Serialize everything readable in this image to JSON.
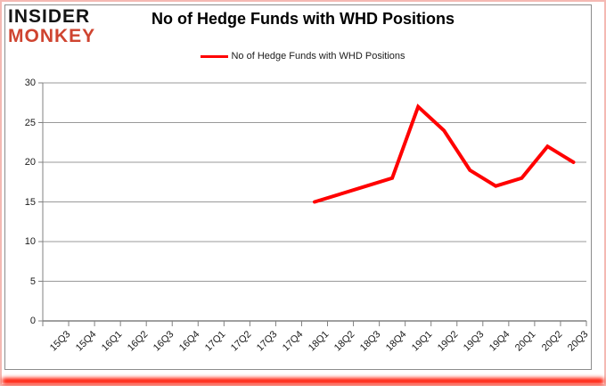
{
  "logo": {
    "line1": "INSIDER",
    "line2": "MONKEY"
  },
  "title": "No of Hedge Funds with WHD Positions",
  "legend": {
    "label": "No of Hedge Funds with WHD Positions"
  },
  "colors": {
    "series_line": "#FF0000",
    "grid": "#999999",
    "axis": "#808080",
    "logo_monkey": "#CF4430",
    "frame_pink": "#F4B9B3",
    "glow_red": "#FF1400"
  },
  "chart_data": {
    "type": "line",
    "title": "No of Hedge Funds with WHD Positions",
    "xlabel": "",
    "ylabel": "",
    "ylim": [
      0,
      30
    ],
    "yticks": [
      0,
      5,
      10,
      15,
      20,
      25,
      30
    ],
    "grid": true,
    "legend_position": "top",
    "categories": [
      "15Q3",
      "15Q4",
      "16Q1",
      "16Q2",
      "16Q3",
      "16Q4",
      "17Q1",
      "17Q2",
      "17Q3",
      "17Q4",
      "18Q1",
      "18Q2",
      "18Q3",
      "18Q4",
      "19Q1",
      "19Q2",
      "19Q3",
      "19Q4",
      "20Q1",
      "20Q2",
      "20Q3"
    ],
    "series": [
      {
        "name": "No of Hedge Funds with WHD Positions",
        "color": "#FF0000",
        "x": [
          "18Q1",
          "18Q2",
          "18Q3",
          "18Q4",
          "19Q1",
          "19Q2",
          "19Q3",
          "19Q4",
          "20Q1",
          "20Q2",
          "20Q3"
        ],
        "values": [
          15,
          16,
          17,
          18,
          27,
          24,
          19,
          17,
          18,
          22,
          20
        ]
      }
    ]
  }
}
